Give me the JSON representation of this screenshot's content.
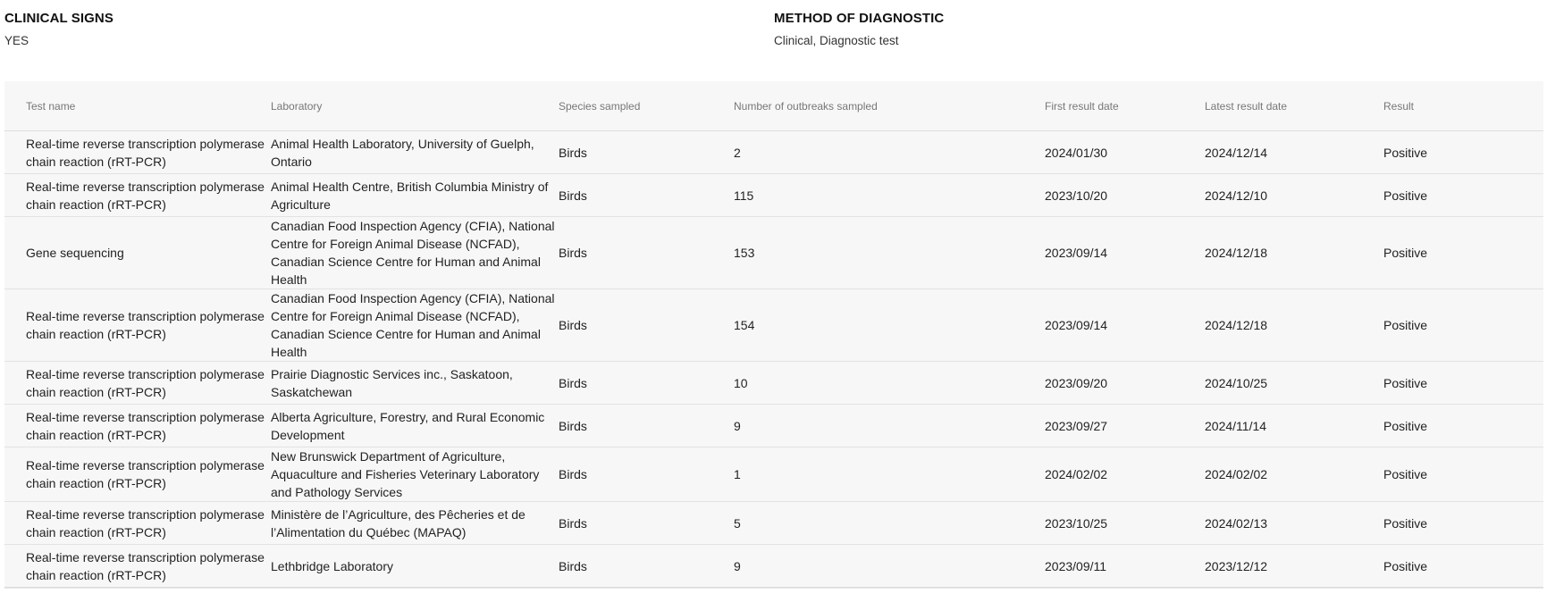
{
  "clinical_signs": {
    "label": "CLINICAL SIGNS",
    "value": "YES"
  },
  "method_of_diagnostic": {
    "label": "METHOD OF DIAGNOSTIC",
    "value": "Clinical, Diagnostic test"
  },
  "table": {
    "headers": [
      "Test name",
      "Laboratory",
      "Species sampled",
      "Number of outbreaks sampled",
      "First result date",
      "Latest result date",
      "Result"
    ],
    "rows": [
      [
        "Real-time reverse transcription polymerase chain reaction (rRT-PCR)",
        "Animal Health Laboratory, University of Guelph, Ontario",
        "Birds",
        "2",
        "2024/01/30",
        "2024/12/14",
        "Positive"
      ],
      [
        "Real-time reverse transcription polymerase chain reaction (rRT-PCR)",
        "Animal Health Centre, British Columbia Ministry of Agriculture",
        "Birds",
        "115",
        "2023/10/20",
        "2024/12/10",
        "Positive"
      ],
      [
        "Gene sequencing",
        "Canadian Food Inspection Agency (CFIA), National Centre for Foreign Animal Disease (NCFAD), Canadian Science Centre for Human and Animal Health",
        "Birds",
        "153",
        "2023/09/14",
        "2024/12/18",
        "Positive"
      ],
      [
        "Real-time reverse transcription polymerase chain reaction (rRT-PCR)",
        "Canadian Food Inspection Agency (CFIA), National Centre for Foreign Animal Disease (NCFAD), Canadian Science Centre for Human and Animal Health",
        "Birds",
        "154",
        "2023/09/14",
        "2024/12/18",
        "Positive"
      ],
      [
        "Real-time reverse transcription polymerase chain reaction (rRT-PCR)",
        "Prairie Diagnostic Services inc., Saskatoon, Saskatchewan",
        "Birds",
        "10",
        "2023/09/20",
        "2024/10/25",
        "Positive"
      ],
      [
        "Real-time reverse transcription polymerase chain reaction (rRT-PCR)",
        "Alberta Agriculture, Forestry, and Rural Economic Development",
        "Birds",
        "9",
        "2023/09/27",
        "2024/11/14",
        "Positive"
      ],
      [
        "Real-time reverse transcription polymerase chain reaction (rRT-PCR)",
        "New Brunswick Department of Agriculture, Aquaculture and Fisheries Veterinary Laboratory and Pathology Services",
        "Birds",
        "1",
        "2024/02/02",
        "2024/02/02",
        "Positive"
      ],
      [
        "Real-time reverse transcription polymerase chain reaction (rRT-PCR)",
        "Ministère de l’Agriculture, des Pêcheries et de l’Alimentation du Québec (MAPAQ)",
        "Birds",
        "5",
        "2023/10/25",
        "2024/02/13",
        "Positive"
      ],
      [
        "Real-time reverse transcription polymerase chain reaction (rRT-PCR)",
        "Lethbridge Laboratory",
        "Birds",
        "9",
        "2023/09/11",
        "2023/12/12",
        "Positive"
      ]
    ]
  }
}
